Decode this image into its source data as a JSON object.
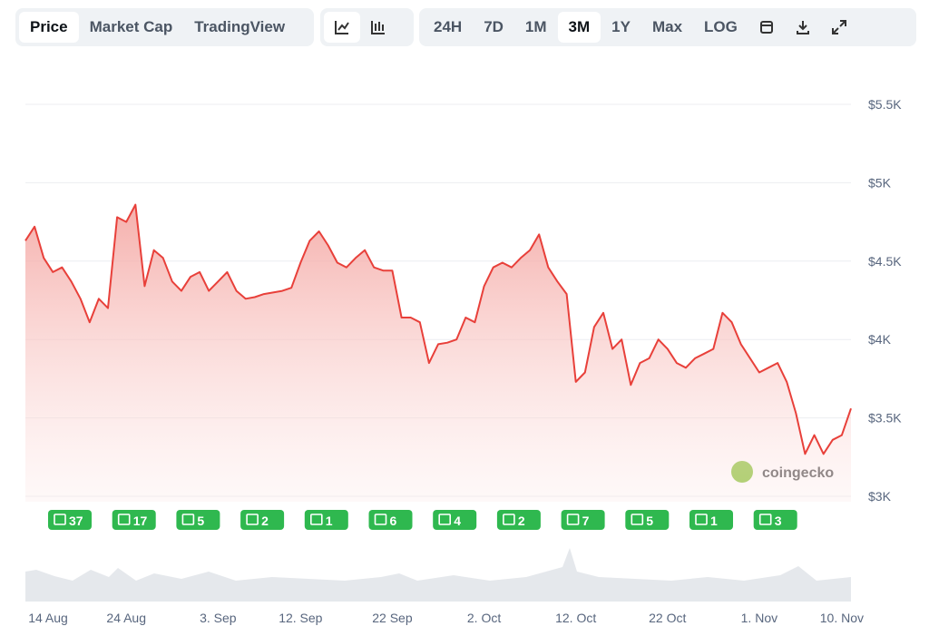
{
  "toolbar": {
    "views": [
      "Price",
      "Market Cap",
      "TradingView"
    ],
    "ranges": [
      "24H",
      "7D",
      "1M",
      "3M",
      "1Y",
      "Max",
      "LOG"
    ]
  },
  "chart_data": {
    "type": "area",
    "watermark": "coingecko",
    "color": "#e8403a",
    "categories": [
      null,
      "14 Aug",
      null,
      null,
      null,
      null,
      null,
      null,
      null,
      null,
      null,
      "24 Aug",
      null,
      null,
      null,
      null,
      null,
      null,
      null,
      null,
      null,
      "3. Sep",
      null,
      null,
      null,
      null,
      null,
      null,
      null,
      null,
      "12. Sep",
      null,
      null,
      null,
      null,
      null,
      null,
      null,
      null,
      null,
      "22 Sep",
      null,
      null,
      null,
      null,
      null,
      null,
      null,
      null,
      null,
      "2. Oct",
      null,
      null,
      null,
      null,
      null,
      null,
      null,
      null,
      null,
      "12. Oct",
      null,
      null,
      null,
      null,
      null,
      null,
      null,
      null,
      null,
      "22 Oct",
      null,
      null,
      null,
      null,
      null,
      null,
      null,
      null,
      null,
      "1. Nov",
      null,
      null,
      null,
      null,
      null,
      null,
      null,
      null,
      "10. Nov",
      null
    ],
    "values": [
      4630,
      4720,
      4520,
      4430,
      4460,
      4370,
      4260,
      4110,
      4260,
      4200,
      4780,
      4750,
      4860,
      4340,
      4570,
      4520,
      4370,
      4310,
      4400,
      4430,
      4310,
      4370,
      4430,
      4310,
      4260,
      4270,
      4290,
      4300,
      4310,
      4330,
      4490,
      4630,
      4690,
      4600,
      4490,
      4460,
      4520,
      4570,
      4460,
      4440,
      4440,
      4140,
      4140,
      4110,
      3850,
      3970,
      3980,
      4000,
      4140,
      4110,
      4340,
      4460,
      4490,
      4460,
      4520,
      4570,
      4670,
      4460,
      4370,
      4290,
      3730,
      3790,
      4080,
      4170,
      3940,
      4000,
      3710,
      3850,
      3880,
      4000,
      3940,
      3850,
      3820,
      3880,
      3910,
      3940,
      4170,
      4110,
      3970,
      3880,
      3790,
      3820,
      3850,
      3730,
      3530,
      3270,
      3390,
      3270,
      3360,
      3390,
      3560
    ],
    "ylim": [
      3000,
      5500
    ],
    "yticks": [
      {
        "value": 3000,
        "label": "$3K"
      },
      {
        "value": 3500,
        "label": "$3.5K"
      },
      {
        "value": 4000,
        "label": "$4K"
      },
      {
        "value": 4500,
        "label": "$4.5K"
      },
      {
        "value": 5000,
        "label": "$5K"
      },
      {
        "value": 5500,
        "label": "$5.5K"
      }
    ],
    "grid": true,
    "news_counts": [
      37,
      17,
      5,
      2,
      1,
      6,
      4,
      2,
      7,
      5,
      1,
      3
    ]
  }
}
